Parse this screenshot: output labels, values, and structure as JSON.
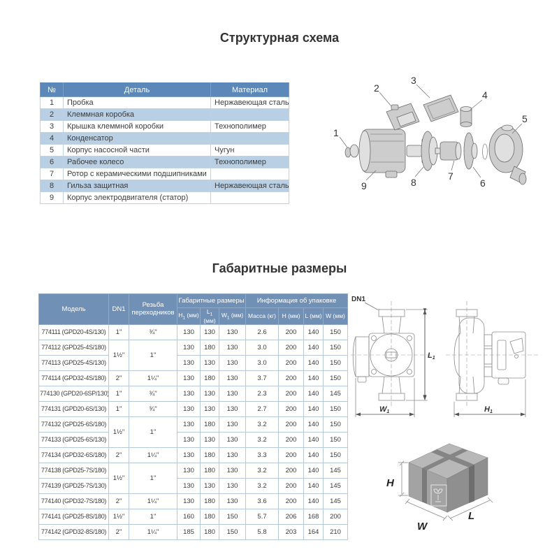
{
  "page": {
    "title1": "Структурная схема",
    "title2": "Габаритные размеры"
  },
  "parts_table": {
    "headers": {
      "num": "№",
      "detail": "Деталь",
      "material": "Материал"
    },
    "rows": [
      {
        "num": "1",
        "detail": "Пробка",
        "material": "Нержавеющая сталь"
      },
      {
        "num": "2",
        "detail": "Клеммная коробка",
        "material": ""
      },
      {
        "num": "3",
        "detail": "Крышка клеммной коробки",
        "material": "Технополимер"
      },
      {
        "num": "4",
        "detail": "Конденсатор",
        "material": ""
      },
      {
        "num": "5",
        "detail": "Корпус насосной части",
        "material": "Чугун"
      },
      {
        "num": "6",
        "detail": "Рабочее колесо",
        "material": "Технополимер"
      },
      {
        "num": "7",
        "detail": "Ротор с керамическими подшипниками",
        "material": ""
      },
      {
        "num": "8",
        "detail": "Гильза защитная",
        "material": "Нержавеющая сталь"
      },
      {
        "num": "9",
        "detail": "Корпус электродвигателя (статор)",
        "material": ""
      }
    ]
  },
  "dims_table": {
    "group_headers": {
      "model": "Модель",
      "dn1": "DN1",
      "thread": "Резьба переходников",
      "dims": "Габаритные размеры",
      "packing": "Информация об упаковке"
    },
    "sub_headers": [
      {
        "main": "H",
        "sub": "1",
        "unit": "(мм)"
      },
      {
        "main": "L",
        "sub": "1",
        "unit": "(мм)"
      },
      {
        "main": "W",
        "sub": "1",
        "unit": "(мм)"
      },
      {
        "main": "Масса",
        "sub": "",
        "unit": "(кг)"
      },
      {
        "main": "H",
        "sub": "",
        "unit": "(мм)"
      },
      {
        "main": "L",
        "sub": "",
        "unit": "(мм)"
      },
      {
        "main": "W",
        "sub": "",
        "unit": "(мм)"
      }
    ],
    "rows": [
      {
        "model": "774111 (GPD20-4S/130)",
        "dn1": "1\"",
        "dn1_span": 1,
        "thread": "¾\"",
        "thread_span": 1,
        "values": [
          "130",
          "130",
          "130",
          "2.6",
          "200",
          "140",
          "150"
        ]
      },
      {
        "model": "774112 (GPD25-4S/180)",
        "dn1": "1½\"",
        "dn1_span": 2,
        "thread": "1\"",
        "thread_span": 2,
        "values": [
          "130",
          "180",
          "130",
          "3.0",
          "200",
          "140",
          "150"
        ]
      },
      {
        "model": "774113 (GPD25-4S/130)",
        "dn1": null,
        "thread": null,
        "values": [
          "130",
          "130",
          "130",
          "3.0",
          "200",
          "140",
          "150"
        ]
      },
      {
        "model": "774114 (GPD32-4S/180)",
        "dn1": "2\"",
        "dn1_span": 1,
        "thread": "1¼\"",
        "thread_span": 1,
        "values": [
          "130",
          "180",
          "130",
          "3.7",
          "200",
          "140",
          "150"
        ]
      },
      {
        "model": "774130 (GPD20-6SP/130)",
        "dn1": "1\"",
        "dn1_span": 1,
        "thread": "¾\"",
        "thread_span": 1,
        "values": [
          "130",
          "130",
          "130",
          "2.3",
          "200",
          "140",
          "145"
        ]
      },
      {
        "model": "774131 (GPD20-6S/130)",
        "dn1": "1\"",
        "dn1_span": 1,
        "thread": "¾\"",
        "thread_span": 1,
        "values": [
          "130",
          "130",
          "130",
          "2.7",
          "200",
          "140",
          "150"
        ]
      },
      {
        "model": "774132 (GPD25-6S/180)",
        "dn1": "1½\"",
        "dn1_span": 2,
        "thread": "1\"",
        "thread_span": 2,
        "values": [
          "130",
          "180",
          "130",
          "3.2",
          "200",
          "140",
          "150"
        ]
      },
      {
        "model": "774133 (GPD25-6S/130)",
        "dn1": null,
        "thread": null,
        "values": [
          "130",
          "130",
          "130",
          "3.2",
          "200",
          "140",
          "150"
        ]
      },
      {
        "model": "774134 (GPD32-6S/180)",
        "dn1": "2\"",
        "dn1_span": 1,
        "thread": "1¼\"",
        "thread_span": 1,
        "values": [
          "130",
          "180",
          "130",
          "3.3",
          "200",
          "140",
          "150"
        ]
      },
      {
        "model": "774138 (GPD25-7S/180)",
        "dn1": "1½\"",
        "dn1_span": 2,
        "thread": "1\"",
        "thread_span": 2,
        "values": [
          "130",
          "180",
          "130",
          "3.2",
          "200",
          "140",
          "145"
        ]
      },
      {
        "model": "774139 (GPD25-7S/130)",
        "dn1": null,
        "thread": null,
        "values": [
          "130",
          "130",
          "130",
          "3.2",
          "200",
          "140",
          "145"
        ]
      },
      {
        "model": "774140 (GPD32-7S/180)",
        "dn1": "2\"",
        "dn1_span": 1,
        "thread": "1¼\"",
        "thread_span": 1,
        "values": [
          "130",
          "180",
          "130",
          "3.6",
          "200",
          "140",
          "145"
        ]
      },
      {
        "model": "774141 (GPD25-8S/180)",
        "dn1": "1½\"",
        "dn1_span": 1,
        "thread": "1\"",
        "thread_span": 1,
        "values": [
          "160",
          "180",
          "150",
          "5.7",
          "206",
          "168",
          "200"
        ]
      },
      {
        "model": "774142 (GPD32-8S/180)",
        "dn1": "2\"",
        "dn1_span": 1,
        "thread": "1¼\"",
        "thread_span": 1,
        "values": [
          "185",
          "180",
          "150",
          "5.8",
          "203",
          "164",
          "210"
        ]
      }
    ]
  },
  "exploded": {
    "numbers": [
      "1",
      "2",
      "3",
      "4",
      "5",
      "6",
      "7",
      "8",
      "9"
    ]
  },
  "drawing": {
    "dn1_label": "DN1",
    "l1_main": "L",
    "l1_sub": "1",
    "w1_main": "W",
    "w1_sub": "1",
    "h1_main": "H",
    "h1_sub": "1"
  },
  "box": {
    "h": "H",
    "w": "W",
    "l": "L"
  },
  "colors": {
    "table1_header_bg": "#5c88b9",
    "table2_header_bg": "#7190b6",
    "stripe": "#b9cfe4",
    "border": "#b7c9dc",
    "header_text": "#ffffff",
    "body_text": "#3c3c3c"
  }
}
